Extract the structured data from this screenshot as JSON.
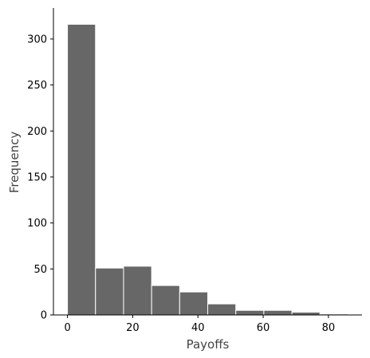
{
  "chart_data": {
    "type": "bar",
    "subtype": "histogram",
    "title": "",
    "xlabel": "Payoffs",
    "ylabel": "Frequency",
    "bin_edges": [
      0,
      8.6,
      17.2,
      25.8,
      34.4,
      43.0,
      51.6,
      60.2,
      68.8,
      77.4,
      86.0
    ],
    "values": [
      316,
      51,
      53,
      32,
      25,
      12,
      5,
      5,
      3,
      1
    ],
    "xlim": [
      -4.3,
      90.3
    ],
    "ylim": [
      0,
      332
    ],
    "xticks": [
      0,
      20,
      40,
      60,
      80
    ],
    "yticks": [
      0,
      50,
      100,
      150,
      200,
      250,
      300
    ],
    "bar_color": "#676767",
    "edge_color": "#ffffff",
    "grid": false
  }
}
